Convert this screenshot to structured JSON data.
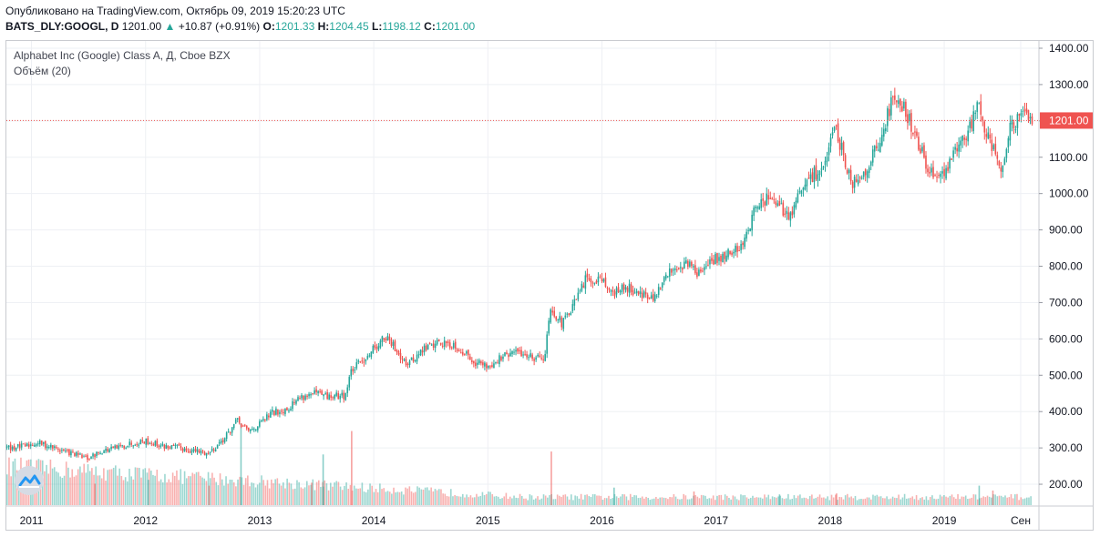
{
  "header": {
    "published": "Опубликовано на TradingView.com, Октябрь 09, 2019 15:20:23 UTC",
    "symbol": "BATS_DLY:GOOGL, D",
    "last": "1201.00",
    "change": "+10.87 (+0.91%)",
    "o_label": "O:",
    "o_value": "1201.33",
    "h_label": "H:",
    "h_value": "1204.45",
    "l_label": "L:",
    "l_value": "1198.12",
    "c_label": "C:",
    "c_value": "1201.00"
  },
  "legend": {
    "series_title": "Alphabet Inc (Google) Class A, Д, Cboe BZX",
    "volume_title": "Объём (20)"
  },
  "colors": {
    "up": "#26a69a",
    "down": "#ef5350",
    "last_price": "#ef5350",
    "grid": "#eef0f4",
    "axis_text": "#131722"
  },
  "chart_data": {
    "type": "candlestick",
    "title": "Alphabet Inc (Google) Class A, Д, Cboe BZX",
    "ylim": [
      140,
      1420
    ],
    "y_ticks": [
      "1400.00",
      "1300.00",
      "1200.00",
      "1100.00",
      "1000.00",
      "900.00",
      "800.00",
      "700.00",
      "600.00",
      "500.00",
      "400.00",
      "300.00",
      "200.00"
    ],
    "y_tick_values": [
      1400,
      1300,
      1200,
      1100,
      1000,
      900,
      800,
      700,
      600,
      500,
      400,
      300,
      200
    ],
    "x_labels": [
      "2011",
      "2012",
      "2013",
      "2014",
      "2015",
      "2016",
      "2017",
      "2018",
      "2019",
      "Сен"
    ],
    "x_label_times": [
      2011.0,
      2012.0,
      2013.0,
      2014.0,
      2015.0,
      2016.0,
      2017.0,
      2018.0,
      2019.0,
      2019.67
    ],
    "x_range": [
      2010.78,
      2019.83
    ],
    "last_price": 1201.0,
    "last_price_label": "1201.00",
    "price_path": [
      [
        2010.78,
        300
      ],
      [
        2010.95,
        305
      ],
      [
        2011.05,
        315
      ],
      [
        2011.2,
        300
      ],
      [
        2011.35,
        285
      ],
      [
        2011.5,
        270
      ],
      [
        2011.6,
        290
      ],
      [
        2011.75,
        300
      ],
      [
        2011.9,
        315
      ],
      [
        2012.0,
        320
      ],
      [
        2012.15,
        305
      ],
      [
        2012.3,
        300
      ],
      [
        2012.45,
        290
      ],
      [
        2012.55,
        285
      ],
      [
        2012.7,
        330
      ],
      [
        2012.8,
        375
      ],
      [
        2012.9,
        345
      ],
      [
        2013.0,
        365
      ],
      [
        2013.1,
        395
      ],
      [
        2013.25,
        410
      ],
      [
        2013.35,
        440
      ],
      [
        2013.5,
        450
      ],
      [
        2013.6,
        440
      ],
      [
        2013.75,
        445
      ],
      [
        2013.8,
        510
      ],
      [
        2013.9,
        540
      ],
      [
        2014.0,
        575
      ],
      [
        2014.1,
        605
      ],
      [
        2014.2,
        570
      ],
      [
        2014.3,
        530
      ],
      [
        2014.45,
        575
      ],
      [
        2014.55,
        590
      ],
      [
        2014.7,
        585
      ],
      [
        2014.8,
        560
      ],
      [
        2014.9,
        535
      ],
      [
        2015.0,
        525
      ],
      [
        2015.1,
        545
      ],
      [
        2015.25,
        565
      ],
      [
        2015.4,
        550
      ],
      [
        2015.5,
        555
      ],
      [
        2015.55,
        690
      ],
      [
        2015.65,
        640
      ],
      [
        2015.75,
        690
      ],
      [
        2015.85,
        760
      ],
      [
        2016.0,
        770
      ],
      [
        2016.1,
        720
      ],
      [
        2016.2,
        745
      ],
      [
        2016.35,
        725
      ],
      [
        2016.45,
        705
      ],
      [
        2016.6,
        790
      ],
      [
        2016.75,
        810
      ],
      [
        2016.85,
        780
      ],
      [
        2017.0,
        820
      ],
      [
        2017.15,
        840
      ],
      [
        2017.25,
        870
      ],
      [
        2017.33,
        950
      ],
      [
        2017.45,
        990
      ],
      [
        2017.55,
        960
      ],
      [
        2017.65,
        940
      ],
      [
        2017.75,
        1010
      ],
      [
        2017.85,
        1050
      ],
      [
        2017.95,
        1080
      ],
      [
        2018.05,
        1180
      ],
      [
        2018.12,
        1100
      ],
      [
        2018.2,
        1030
      ],
      [
        2018.3,
        1060
      ],
      [
        2018.45,
        1150
      ],
      [
        2018.55,
        1270
      ],
      [
        2018.65,
        1240
      ],
      [
        2018.75,
        1150
      ],
      [
        2018.85,
        1080
      ],
      [
        2018.95,
        1030
      ],
      [
        2019.05,
        1090
      ],
      [
        2019.15,
        1140
      ],
      [
        2019.25,
        1200
      ],
      [
        2019.3,
        1270
      ],
      [
        2019.35,
        1190
      ],
      [
        2019.45,
        1110
      ],
      [
        2019.5,
        1060
      ],
      [
        2019.58,
        1180
      ],
      [
        2019.65,
        1200
      ],
      [
        2019.72,
        1220
      ],
      [
        2019.77,
        1201
      ]
    ],
    "volume": {
      "label": "Объём (20)",
      "max_scale": 420,
      "spikes": [
        {
          "t": 2011.55,
          "v": 110
        },
        {
          "t": 2012.02,
          "v": 130
        },
        {
          "t": 2012.55,
          "v": 100
        },
        {
          "t": 2012.83,
          "v": 420
        },
        {
          "t": 2013.45,
          "v": 115
        },
        {
          "t": 2013.55,
          "v": 95
        },
        {
          "t": 2013.8,
          "v": 380
        },
        {
          "t": 2013.55,
          "v": 260
        },
        {
          "t": 2015.55,
          "v": 275
        },
        {
          "t": 2016.1,
          "v": 90
        },
        {
          "t": 2016.8,
          "v": 70
        },
        {
          "t": 2017.55,
          "v": 55
        },
        {
          "t": 2018.05,
          "v": 60
        },
        {
          "t": 2019.3,
          "v": 100
        },
        {
          "t": 2019.42,
          "v": 75
        }
      ]
    }
  }
}
